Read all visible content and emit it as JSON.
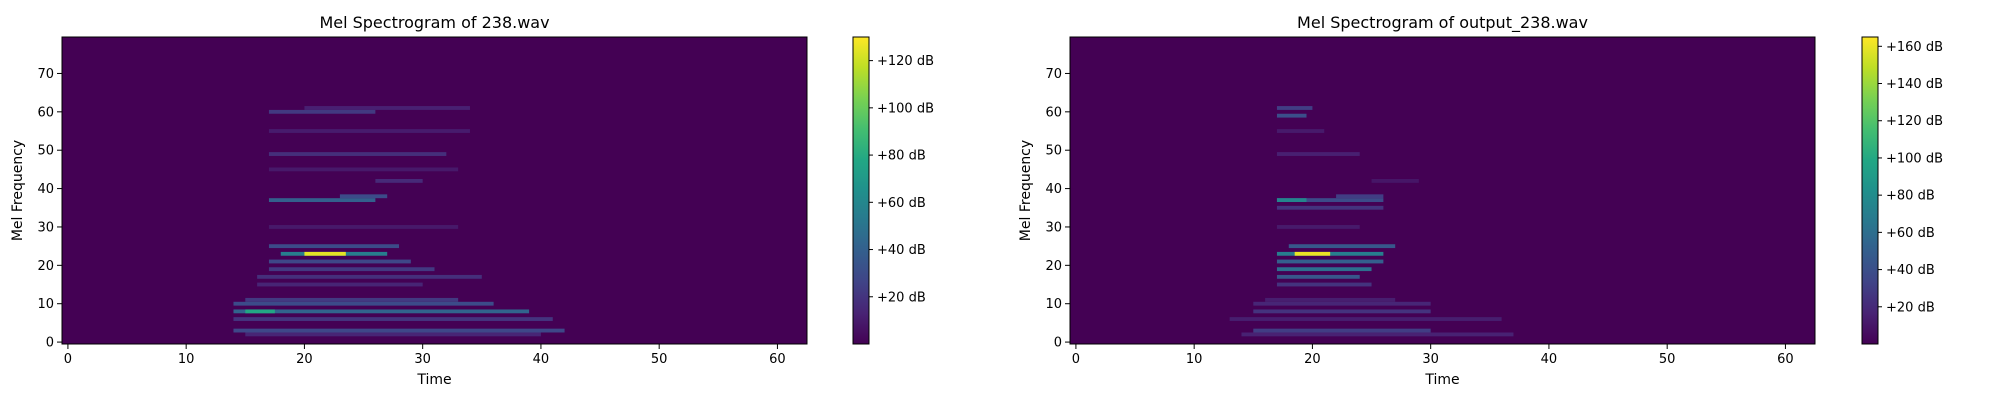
{
  "chart_data": [
    {
      "type": "heatmap",
      "title": "Mel Spectrogram of 238.wav",
      "xlabel": "Time",
      "ylabel": "Mel Frequency",
      "xlim": [
        -0.5,
        62.5
      ],
      "ylim": [
        -0.5,
        79.5
      ],
      "xticks": [
        0,
        10,
        20,
        30,
        40,
        50,
        60
      ],
      "yticks": [
        0,
        10,
        20,
        30,
        40,
        50,
        60,
        70
      ],
      "colorbar": {
        "min": 0,
        "max": 130,
        "ticks": [
          20,
          40,
          60,
          80,
          100,
          120
        ],
        "tick_labels": [
          "+20 dB",
          "+40 dB",
          "+60 dB",
          "+80 dB",
          "+100 dB",
          "+120 dB"
        ]
      },
      "colormap": "viridis",
      "features": [
        {
          "mel": 23,
          "t_start": 20,
          "t_end": 23.5,
          "level": 125
        },
        {
          "mel": 23,
          "t_start": 18,
          "t_end": 27,
          "level": 55
        },
        {
          "mel": 25,
          "t_start": 17,
          "t_end": 28,
          "level": 30
        },
        {
          "mel": 21,
          "t_start": 17,
          "t_end": 29,
          "level": 28
        },
        {
          "mel": 19,
          "t_start": 17,
          "t_end": 31,
          "level": 22
        },
        {
          "mel": 17,
          "t_start": 16,
          "t_end": 35,
          "level": 18
        },
        {
          "mel": 15,
          "t_start": 16,
          "t_end": 30,
          "level": 14
        },
        {
          "mel": 8,
          "t_start": 15,
          "t_end": 17.5,
          "level": 78
        },
        {
          "mel": 8,
          "t_start": 14,
          "t_end": 39,
          "level": 42
        },
        {
          "mel": 10,
          "t_start": 14,
          "t_end": 36,
          "level": 30
        },
        {
          "mel": 11,
          "t_start": 15,
          "t_end": 33,
          "level": 22
        },
        {
          "mel": 6,
          "t_start": 14,
          "t_end": 41,
          "level": 20
        },
        {
          "mel": 3,
          "t_start": 14,
          "t_end": 42,
          "level": 28
        },
        {
          "mel": 2,
          "t_start": 15,
          "t_end": 40,
          "level": 14
        },
        {
          "mel": 37,
          "t_start": 17,
          "t_end": 26,
          "level": 40
        },
        {
          "mel": 38,
          "t_start": 23,
          "t_end": 27,
          "level": 30
        },
        {
          "mel": 42,
          "t_start": 26,
          "t_end": 30,
          "level": 16
        },
        {
          "mel": 49,
          "t_start": 17,
          "t_end": 32,
          "level": 18
        },
        {
          "mel": 60,
          "t_start": 17,
          "t_end": 26,
          "level": 22
        },
        {
          "mel": 61,
          "t_start": 20,
          "t_end": 34,
          "level": 12
        },
        {
          "mel": 55,
          "t_start": 17,
          "t_end": 34,
          "level": 10
        },
        {
          "mel": 45,
          "t_start": 17,
          "t_end": 33,
          "level": 9
        },
        {
          "mel": 30,
          "t_start": 17,
          "t_end": 33,
          "level": 9
        }
      ]
    },
    {
      "type": "heatmap",
      "title": "Mel Spectrogram of output_238.wav",
      "xlabel": "Time",
      "ylabel": "Mel Frequency",
      "xlim": [
        -0.5,
        62.5
      ],
      "ylim": [
        -0.5,
        79.5
      ],
      "xticks": [
        0,
        10,
        20,
        30,
        40,
        50,
        60
      ],
      "yticks": [
        0,
        10,
        20,
        30,
        40,
        50,
        60,
        70
      ],
      "colorbar": {
        "min": 0,
        "max": 165,
        "ticks": [
          20,
          40,
          60,
          80,
          100,
          120,
          140,
          160
        ],
        "tick_labels": [
          "+20 dB",
          "+40 dB",
          "+60 dB",
          "+80 dB",
          "+100 dB",
          "+120 dB",
          "+140 dB",
          "+160 dB"
        ]
      },
      "colormap": "viridis",
      "features": [
        {
          "mel": 23,
          "t_start": 18.5,
          "t_end": 21.5,
          "level": 160
        },
        {
          "mel": 23,
          "t_start": 17,
          "t_end": 26,
          "level": 70
        },
        {
          "mel": 25,
          "t_start": 18,
          "t_end": 27,
          "level": 45
        },
        {
          "mel": 21,
          "t_start": 17,
          "t_end": 26,
          "level": 50
        },
        {
          "mel": 19,
          "t_start": 17,
          "t_end": 25,
          "level": 60
        },
        {
          "mel": 17,
          "t_start": 17,
          "t_end": 24,
          "level": 45
        },
        {
          "mel": 15,
          "t_start": 17,
          "t_end": 25,
          "level": 25
        },
        {
          "mel": 37,
          "t_start": 17,
          "t_end": 19.5,
          "level": 75
        },
        {
          "mel": 37,
          "t_start": 17,
          "t_end": 26,
          "level": 38
        },
        {
          "mel": 35,
          "t_start": 17,
          "t_end": 26,
          "level": 25
        },
        {
          "mel": 38,
          "t_start": 22,
          "t_end": 26,
          "level": 30
        },
        {
          "mel": 59,
          "t_start": 17,
          "t_end": 19.5,
          "level": 40
        },
        {
          "mel": 61,
          "t_start": 17,
          "t_end": 20,
          "level": 30
        },
        {
          "mel": 49,
          "t_start": 17,
          "t_end": 24,
          "level": 15
        },
        {
          "mel": 55,
          "t_start": 17,
          "t_end": 21,
          "level": 12
        },
        {
          "mel": 10,
          "t_start": 15,
          "t_end": 30,
          "level": 18
        },
        {
          "mel": 8,
          "t_start": 15,
          "t_end": 30,
          "level": 25
        },
        {
          "mel": 6,
          "t_start": 13,
          "t_end": 36,
          "level": 14
        },
        {
          "mel": 3,
          "t_start": 15,
          "t_end": 30,
          "level": 30
        },
        {
          "mel": 2,
          "t_start": 14,
          "t_end": 37,
          "level": 16
        },
        {
          "mel": 11,
          "t_start": 16,
          "t_end": 27,
          "level": 14
        },
        {
          "mel": 30,
          "t_start": 17,
          "t_end": 24,
          "level": 12
        },
        {
          "mel": 42,
          "t_start": 25,
          "t_end": 29,
          "level": 10
        }
      ]
    }
  ]
}
